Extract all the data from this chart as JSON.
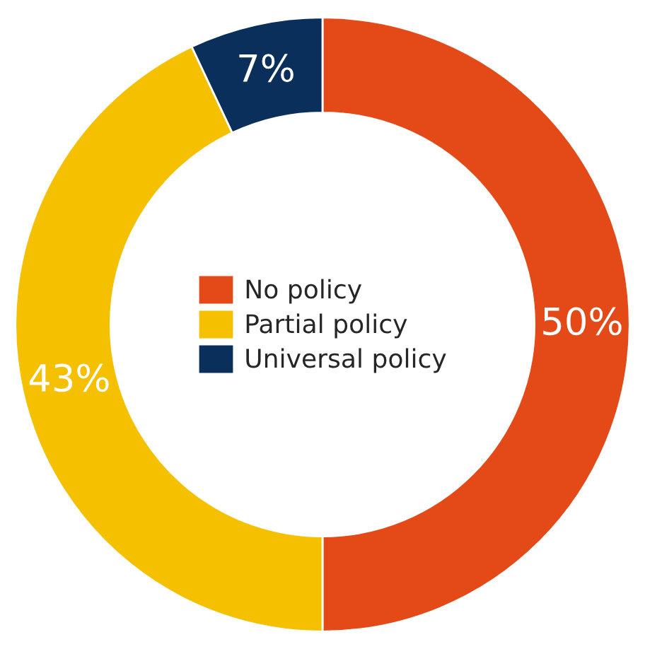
{
  "chart_data": {
    "type": "donut",
    "categories": [
      "No policy",
      "Partial policy",
      "Universal policy"
    ],
    "values": [
      50,
      43,
      7
    ],
    "colors": [
      "#e34a17",
      "#f5c000",
      "#0a2f5a"
    ],
    "value_labels": [
      "50%",
      "43%",
      "7%"
    ],
    "legend": "center"
  }
}
